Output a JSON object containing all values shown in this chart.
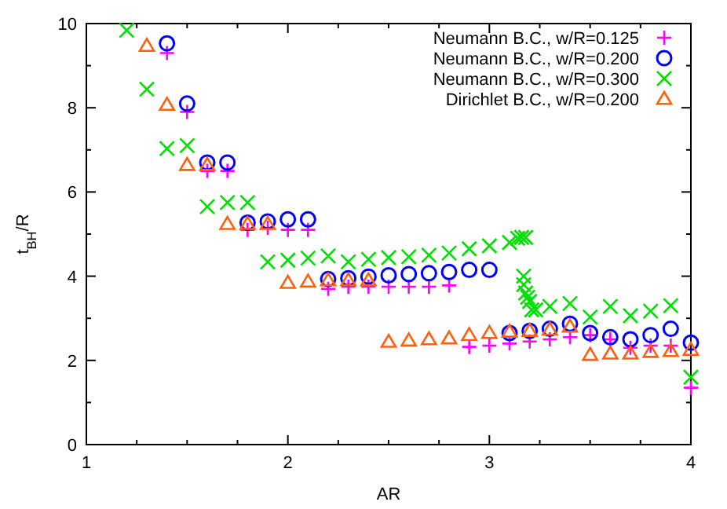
{
  "chart_data": {
    "type": "scatter",
    "xlabel": "AR",
    "ylabel": "t$_{BH}$/R",
    "xlim": [
      1,
      4
    ],
    "ylim": [
      0,
      10
    ],
    "xticks": [
      1,
      {
        "value": 1.25,
        "label": null
      },
      {
        "value": 1.5,
        "label": null
      },
      {
        "value": 1.75,
        "label": null
      },
      2,
      {
        "value": 2.25,
        "label": null
      },
      {
        "value": 2.5,
        "label": null
      },
      {
        "value": 2.75,
        "label": null
      },
      3,
      {
        "value": 3.25,
        "label": null
      },
      {
        "value": 3.5,
        "label": null
      },
      {
        "value": 3.75,
        "label": null
      },
      4
    ],
    "yticks": [
      0,
      {
        "value": 1,
        "label": null
      },
      2,
      {
        "value": 3,
        "label": null
      },
      4,
      {
        "value": 5,
        "label": null
      },
      6,
      {
        "value": 7,
        "label": null
      },
      8,
      {
        "value": 9,
        "label": null
      },
      10
    ],
    "legend": "top right",
    "grid": false,
    "series": [
      {
        "name": "Neumann B.C., w/R=0.125",
        "color": "#ff00ff",
        "marker": "plus",
        "x": [
          1.4,
          1.5,
          1.6,
          1.7,
          1.8,
          1.9,
          2.0,
          2.1,
          2.2,
          2.3,
          2.4,
          2.5,
          2.6,
          2.7,
          2.8,
          2.9,
          3.0,
          3.1,
          3.2,
          3.3,
          3.4,
          3.5,
          3.6,
          3.7,
          3.8,
          3.9,
          4.0
        ],
        "values": [
          9.3,
          7.9,
          6.5,
          6.5,
          5.1,
          5.15,
          5.1,
          5.1,
          3.7,
          3.75,
          3.75,
          3.75,
          3.75,
          3.75,
          3.78,
          2.32,
          2.35,
          2.4,
          2.45,
          2.5,
          2.55,
          2.6,
          2.5,
          2.3,
          2.35,
          2.35,
          1.35
        ]
      },
      {
        "name": "Neumann B.C., w/R=0.200",
        "color": "#0000ff",
        "marker": "circle",
        "x": [
          1.4,
          1.5,
          1.6,
          1.7,
          1.8,
          1.9,
          2.0,
          2.1,
          2.2,
          2.3,
          2.4,
          2.5,
          2.6,
          2.7,
          2.8,
          2.9,
          3.0,
          3.1,
          3.2,
          3.3,
          3.4,
          3.5,
          3.6,
          3.7,
          3.8,
          3.9,
          4.0
        ],
        "values": [
          9.53,
          8.1,
          6.7,
          6.7,
          5.27,
          5.3,
          5.35,
          5.35,
          3.93,
          3.95,
          3.99,
          4.02,
          4.05,
          4.07,
          4.1,
          4.15,
          4.15,
          2.65,
          2.7,
          2.75,
          2.87,
          2.65,
          2.55,
          2.5,
          2.6,
          2.75,
          2.42
        ]
      },
      {
        "name": "Neumann B.C., w/R=0.300",
        "color": "#00e000",
        "marker": "cross",
        "x": [
          1.2,
          1.3,
          1.4,
          1.5,
          1.6,
          1.7,
          1.8,
          1.9,
          2.0,
          2.1,
          2.2,
          2.3,
          2.4,
          2.5,
          2.6,
          2.7,
          2.8,
          2.9,
          3.0,
          3.1,
          3.14,
          3.16,
          3.18,
          3.17,
          3.17,
          3.18,
          3.19,
          3.2,
          3.21,
          3.23,
          3.3,
          3.4,
          3.5,
          3.6,
          3.7,
          3.8,
          3.9,
          4.0
        ],
        "values": [
          9.84,
          8.44,
          7.03,
          7.1,
          5.65,
          5.75,
          5.75,
          4.34,
          4.38,
          4.43,
          4.48,
          4.34,
          4.4,
          4.44,
          4.46,
          4.5,
          4.55,
          4.65,
          4.72,
          4.8,
          4.9,
          4.92,
          4.92,
          4.0,
          3.8,
          3.6,
          3.5,
          3.4,
          3.2,
          3.2,
          3.28,
          3.35,
          3.03,
          3.28,
          3.06,
          3.17,
          3.3,
          1.6
        ]
      },
      {
        "name": "Dirichlet B.C., w/R=0.200",
        "color": "#ff6010",
        "marker": "triangle",
        "x": [
          1.3,
          1.4,
          1.5,
          1.6,
          1.7,
          1.8,
          1.9,
          2.0,
          2.1,
          2.2,
          2.3,
          2.4,
          2.5,
          2.6,
          2.7,
          2.8,
          2.9,
          3.0,
          3.1,
          3.2,
          3.3,
          3.4,
          3.5,
          3.6,
          3.7,
          3.8,
          3.9,
          4.0
        ],
        "values": [
          9.47,
          8.07,
          6.64,
          6.64,
          5.24,
          5.24,
          5.24,
          3.84,
          3.87,
          3.9,
          3.9,
          3.9,
          2.44,
          2.47,
          2.5,
          2.52,
          2.6,
          2.65,
          2.68,
          2.7,
          2.73,
          2.8,
          2.13,
          2.16,
          2.16,
          2.2,
          2.22,
          2.25
        ]
      }
    ]
  }
}
